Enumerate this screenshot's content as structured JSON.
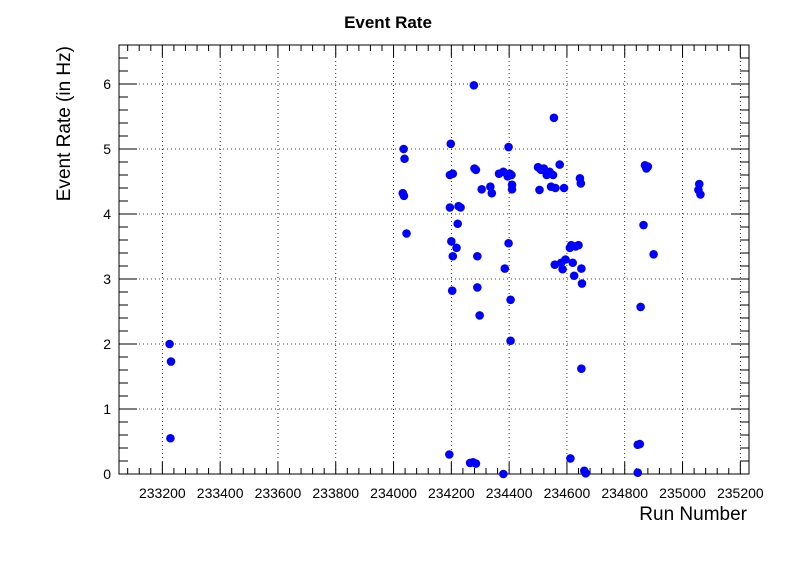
{
  "chart_data": {
    "type": "scatter",
    "title": "Event Rate",
    "xlabel": "Run Number",
    "ylabel": "Event Rate (in Hz)",
    "xlim": [
      233050,
      235230
    ],
    "ylim": [
      0,
      6.6
    ],
    "x_ticks": [
      233200,
      233400,
      233600,
      233800,
      234000,
      234200,
      234400,
      234600,
      234800,
      235000,
      235200
    ],
    "y_ticks": [
      0,
      1,
      2,
      3,
      4,
      5,
      6
    ],
    "grid": true,
    "marker_color": "#0000ff",
    "series": [
      {
        "points": [
          [
            233225,
            2.0
          ],
          [
            233230,
            1.73
          ],
          [
            233228,
            0.55
          ],
          [
            234035,
            5.0
          ],
          [
            234038,
            4.85
          ],
          [
            234032,
            4.32
          ],
          [
            234036,
            4.28
          ],
          [
            234045,
            3.7
          ],
          [
            234198,
            5.08
          ],
          [
            234195,
            4.6
          ],
          [
            234205,
            4.62
          ],
          [
            234195,
            4.1
          ],
          [
            234200,
            3.58
          ],
          [
            234205,
            3.35
          ],
          [
            234203,
            2.82
          ],
          [
            234193,
            0.3
          ],
          [
            234218,
            3.48
          ],
          [
            234225,
            4.12
          ],
          [
            234232,
            4.1
          ],
          [
            234222,
            3.85
          ],
          [
            234265,
            0.17
          ],
          [
            234275,
            0.18
          ],
          [
            234285,
            0.16
          ],
          [
            234278,
            5.98
          ],
          [
            234280,
            4.7
          ],
          [
            234285,
            4.68
          ],
          [
            234290,
            3.35
          ],
          [
            234290,
            2.87
          ],
          [
            234298,
            2.44
          ],
          [
            234305,
            4.38
          ],
          [
            234335,
            4.42
          ],
          [
            234340,
            4.32
          ],
          [
            234365,
            4.62
          ],
          [
            234380,
            4.65
          ],
          [
            234385,
            3.16
          ],
          [
            234380,
            0.0
          ],
          [
            234398,
            5.03
          ],
          [
            234395,
            4.58
          ],
          [
            234402,
            4.62
          ],
          [
            234408,
            4.6
          ],
          [
            234410,
            4.38
          ],
          [
            234410,
            4.45
          ],
          [
            234398,
            3.55
          ],
          [
            234405,
            2.68
          ],
          [
            234405,
            2.05
          ],
          [
            234500,
            4.72
          ],
          [
            234505,
            4.37
          ],
          [
            234510,
            4.68
          ],
          [
            234520,
            4.7
          ],
          [
            234530,
            4.6
          ],
          [
            234540,
            4.65
          ],
          [
            234545,
            4.42
          ],
          [
            234555,
            5.48
          ],
          [
            234552,
            4.6
          ],
          [
            234560,
            4.4
          ],
          [
            234558,
            3.22
          ],
          [
            234575,
            4.76
          ],
          [
            234580,
            3.25
          ],
          [
            234585,
            3.15
          ],
          [
            234590,
            4.4
          ],
          [
            234595,
            3.3
          ],
          [
            234610,
            3.48
          ],
          [
            234615,
            3.52
          ],
          [
            234620,
            3.25
          ],
          [
            234625,
            3.05
          ],
          [
            234630,
            3.5
          ],
          [
            234640,
            3.52
          ],
          [
            234612,
            0.24
          ],
          [
            234645,
            4.55
          ],
          [
            234648,
            4.47
          ],
          [
            234650,
            3.16
          ],
          [
            234652,
            2.93
          ],
          [
            234650,
            1.62
          ],
          [
            234660,
            0.05
          ],
          [
            234665,
            0.01
          ],
          [
            234845,
            0.45
          ],
          [
            234852,
            0.46
          ],
          [
            234855,
            2.57
          ],
          [
            234845,
            0.02
          ],
          [
            234865,
            3.83
          ],
          [
            234870,
            4.75
          ],
          [
            234875,
            4.7
          ],
          [
            234880,
            4.73
          ],
          [
            234900,
            3.38
          ],
          [
            235055,
            4.37
          ],
          [
            235058,
            4.46
          ],
          [
            235062,
            4.3
          ]
        ]
      }
    ]
  }
}
